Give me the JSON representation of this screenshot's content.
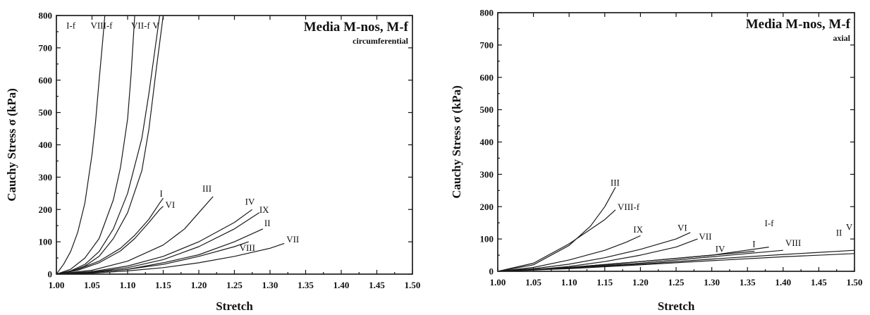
{
  "chart_data": [
    {
      "type": "line",
      "title": "Media M-nos, M-f",
      "subtitle": "circumferential",
      "xlabel": "Stretch",
      "ylabel": "Cauchy Stress σ (kPa)",
      "xlim": [
        1.0,
        1.5
      ],
      "ylim": [
        0,
        800
      ],
      "xticks": [
        "1.00",
        "1.05",
        "1.10",
        "1.15",
        "1.20",
        "1.25",
        "1.30",
        "1.35",
        "1.40",
        "1.45",
        "1.50"
      ],
      "yticks": [
        "0",
        "100",
        "200",
        "300",
        "400",
        "500",
        "600",
        "700",
        "800"
      ],
      "grid": false,
      "series": [
        {
          "name": "I-f",
          "x": [
            1.0,
            1.01,
            1.02,
            1.03,
            1.04,
            1.05,
            1.055,
            1.06,
            1.065,
            1.068
          ],
          "y": [
            0,
            30,
            70,
            130,
            220,
            370,
            470,
            600,
            720,
            800
          ]
        },
        {
          "name": "VIII-f",
          "x": [
            1.0,
            1.02,
            1.04,
            1.06,
            1.08,
            1.09,
            1.1,
            1.105,
            1.11
          ],
          "y": [
            0,
            15,
            50,
            110,
            230,
            330,
            480,
            620,
            800
          ]
        },
        {
          "name": "VII-f",
          "x": [
            1.0,
            1.02,
            1.04,
            1.06,
            1.08,
            1.1,
            1.12,
            1.13,
            1.14,
            1.145
          ],
          "y": [
            0,
            10,
            30,
            70,
            140,
            250,
            420,
            560,
            720,
            800
          ]
        },
        {
          "name": "V",
          "x": [
            1.0,
            1.02,
            1.04,
            1.06,
            1.08,
            1.1,
            1.12,
            1.13,
            1.14,
            1.15
          ],
          "y": [
            0,
            8,
            25,
            55,
            110,
            190,
            320,
            450,
            630,
            800
          ]
        },
        {
          "name": "I",
          "x": [
            1.0,
            1.03,
            1.06,
            1.09,
            1.11,
            1.13,
            1.145,
            1.15
          ],
          "y": [
            0,
            15,
            40,
            80,
            120,
            170,
            220,
            235
          ]
        },
        {
          "name": "VI",
          "x": [
            1.0,
            1.03,
            1.06,
            1.09,
            1.11,
            1.13,
            1.145,
            1.15
          ],
          "y": [
            0,
            12,
            35,
            72,
            110,
            160,
            200,
            210
          ]
        },
        {
          "name": "III",
          "x": [
            1.0,
            1.05,
            1.1,
            1.15,
            1.18,
            1.2,
            1.22
          ],
          "y": [
            0,
            12,
            40,
            90,
            140,
            190,
            240
          ]
        },
        {
          "name": "IV",
          "x": [
            1.0,
            1.05,
            1.1,
            1.15,
            1.2,
            1.25,
            1.275
          ],
          "y": [
            0,
            8,
            25,
            55,
            100,
            160,
            200
          ]
        },
        {
          "name": "IX",
          "x": [
            1.0,
            1.05,
            1.1,
            1.15,
            1.2,
            1.25,
            1.285
          ],
          "y": [
            0,
            6,
            20,
            45,
            85,
            140,
            190
          ]
        },
        {
          "name": "II",
          "x": [
            1.0,
            1.05,
            1.1,
            1.15,
            1.2,
            1.25,
            1.29
          ],
          "y": [
            0,
            5,
            15,
            35,
            60,
            100,
            140
          ]
        },
        {
          "name": "VIII",
          "x": [
            1.0,
            1.05,
            1.1,
            1.15,
            1.2,
            1.25,
            1.27
          ],
          "y": [
            0,
            5,
            15,
            30,
            55,
            85,
            100
          ]
        },
        {
          "name": "VII",
          "x": [
            1.0,
            1.05,
            1.1,
            1.15,
            1.2,
            1.25,
            1.3,
            1.32
          ],
          "y": [
            0,
            3,
            10,
            20,
            35,
            55,
            80,
            95
          ]
        }
      ],
      "labels": [
        {
          "text": "I-f",
          "x": 1.014,
          "y": 760
        },
        {
          "text": "VIII-f",
          "x": 1.048,
          "y": 760
        },
        {
          "text": "VII-f",
          "x": 1.105,
          "y": 760
        },
        {
          "text": "V",
          "x": 1.135,
          "y": 760
        },
        {
          "text": "I",
          "x": 1.145,
          "y": 240
        },
        {
          "text": "VI",
          "x": 1.153,
          "y": 205
        },
        {
          "text": "III",
          "x": 1.205,
          "y": 255
        },
        {
          "text": "IV",
          "x": 1.265,
          "y": 215
        },
        {
          "text": "IX",
          "x": 1.285,
          "y": 190
        },
        {
          "text": "II",
          "x": 1.292,
          "y": 148
        },
        {
          "text": "VIII",
          "x": 1.257,
          "y": 72
        },
        {
          "text": "VII",
          "x": 1.323,
          "y": 98
        }
      ]
    },
    {
      "type": "line",
      "title": "Media M-nos, M-f",
      "subtitle": "axial",
      "xlabel": "Stretch",
      "ylabel": "Cauchy Stress σ (kPa)",
      "xlim": [
        1.0,
        1.5
      ],
      "ylim": [
        0,
        800
      ],
      "xticks": [
        "1.00",
        "1.05",
        "1.10",
        "1.15",
        "1.20",
        "1.25",
        "1.30",
        "1.35",
        "1.40",
        "1.45",
        "1.50"
      ],
      "yticks": [
        "0",
        "100",
        "200",
        "300",
        "400",
        "500",
        "600",
        "700",
        "800"
      ],
      "grid": false,
      "series": [
        {
          "name": "III",
          "x": [
            1.0,
            1.05,
            1.1,
            1.13,
            1.15,
            1.16,
            1.165
          ],
          "y": [
            0,
            20,
            80,
            140,
            200,
            240,
            260
          ]
        },
        {
          "name": "VIII-f",
          "x": [
            1.0,
            1.05,
            1.1,
            1.13,
            1.15,
            1.165
          ],
          "y": [
            0,
            25,
            85,
            130,
            160,
            190
          ]
        },
        {
          "name": "IX",
          "x": [
            1.0,
            1.05,
            1.1,
            1.15,
            1.18,
            1.2
          ],
          "y": [
            0,
            12,
            35,
            65,
            90,
            110
          ]
        },
        {
          "name": "VI",
          "x": [
            1.0,
            1.05,
            1.1,
            1.15,
            1.2,
            1.25,
            1.27
          ],
          "y": [
            0,
            8,
            22,
            42,
            68,
            100,
            120
          ]
        },
        {
          "name": "VII",
          "x": [
            1.0,
            1.05,
            1.1,
            1.15,
            1.2,
            1.25,
            1.28
          ],
          "y": [
            0,
            5,
            15,
            30,
            50,
            75,
            100
          ]
        },
        {
          "name": "IV",
          "x": [
            1.0,
            1.1,
            1.2,
            1.3
          ],
          "y": [
            0,
            10,
            30,
            50
          ]
        },
        {
          "name": "I",
          "x": [
            1.0,
            1.1,
            1.2,
            1.3,
            1.36
          ],
          "y": [
            0,
            12,
            30,
            50,
            62
          ]
        },
        {
          "name": "I-f",
          "x": [
            1.0,
            1.1,
            1.2,
            1.3,
            1.38
          ],
          "y": [
            0,
            12,
            30,
            50,
            75
          ]
        },
        {
          "name": "VIII",
          "x": [
            1.0,
            1.1,
            1.2,
            1.3,
            1.4
          ],
          "y": [
            0,
            10,
            25,
            45,
            65
          ]
        },
        {
          "name": "II",
          "x": [
            1.0,
            1.1,
            1.2,
            1.3,
            1.4,
            1.5
          ],
          "y": [
            0,
            8,
            20,
            33,
            45,
            55
          ]
        },
        {
          "name": "V",
          "x": [
            1.0,
            1.1,
            1.2,
            1.3,
            1.4,
            1.5
          ],
          "y": [
            0,
            10,
            22,
            38,
            52,
            65
          ]
        }
      ],
      "labels": [
        {
          "text": "III",
          "x": 1.158,
          "y": 265
        },
        {
          "text": "VIII-f",
          "x": 1.168,
          "y": 190
        },
        {
          "text": "IX",
          "x": 1.19,
          "y": 120
        },
        {
          "text": "VI",
          "x": 1.252,
          "y": 125
        },
        {
          "text": "VII",
          "x": 1.282,
          "y": 98
        },
        {
          "text": "IV",
          "x": 1.305,
          "y": 60
        },
        {
          "text": "I",
          "x": 1.357,
          "y": 75
        },
        {
          "text": "I-f",
          "x": 1.374,
          "y": 140
        },
        {
          "text": "VIII",
          "x": 1.403,
          "y": 78
        },
        {
          "text": "II",
          "x": 1.474,
          "y": 110
        },
        {
          "text": "V",
          "x": 1.488,
          "y": 128
        }
      ]
    }
  ]
}
